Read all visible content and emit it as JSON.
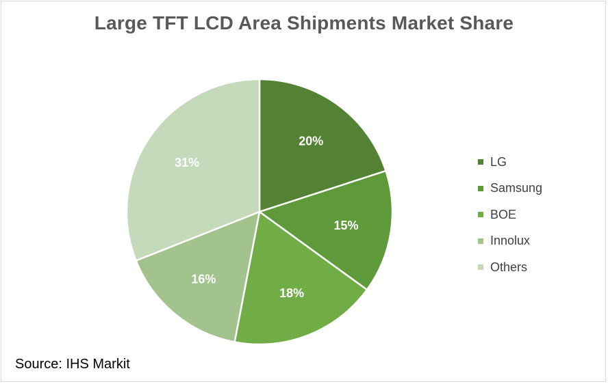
{
  "chart_data": {
    "type": "pie",
    "title": "Large TFT LCD Area Shipments Market Share",
    "categories": [
      "LG",
      "Samsung",
      "BOE",
      "Innolux",
      "Others"
    ],
    "values": [
      20,
      15,
      18,
      16,
      31
    ],
    "labels": [
      "20%",
      "15%",
      "18%",
      "16%",
      "31%"
    ],
    "colors": [
      "#548235",
      "#5f9a3a",
      "#70ad47",
      "#a2c38e",
      "#c5d9bb"
    ],
    "legend_position": "right"
  },
  "source": "Source: IHS Markit"
}
